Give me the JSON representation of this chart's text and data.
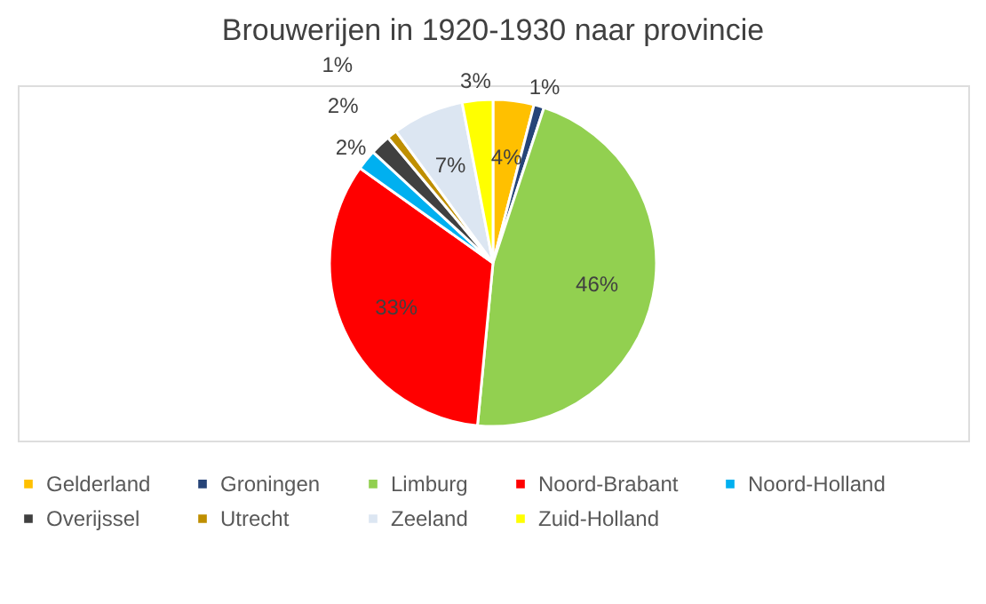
{
  "chart_data": {
    "type": "pie",
    "title": "Brouwerijen in 1920-1930 naar provincie",
    "categories": [
      "Gelderland",
      "Groningen",
      "Limburg",
      "Noord-Brabant",
      "Noord-Holland",
      "Overijssel",
      "Utrecht",
      "Zeeland",
      "Zuid-Holland"
    ],
    "values": [
      4,
      1,
      46,
      33,
      2,
      2,
      1,
      7,
      3
    ],
    "value_labels": [
      "4%",
      "1%",
      "46%",
      "33%",
      "2%",
      "2%",
      "1%",
      "7%",
      "3%"
    ],
    "colors": [
      "#ffc000",
      "#264478",
      "#92d050",
      "#ff0000",
      "#00b0f0",
      "#404040",
      "#bf8f00",
      "#dce6f2",
      "#ffff00"
    ],
    "legend": "bottom"
  }
}
